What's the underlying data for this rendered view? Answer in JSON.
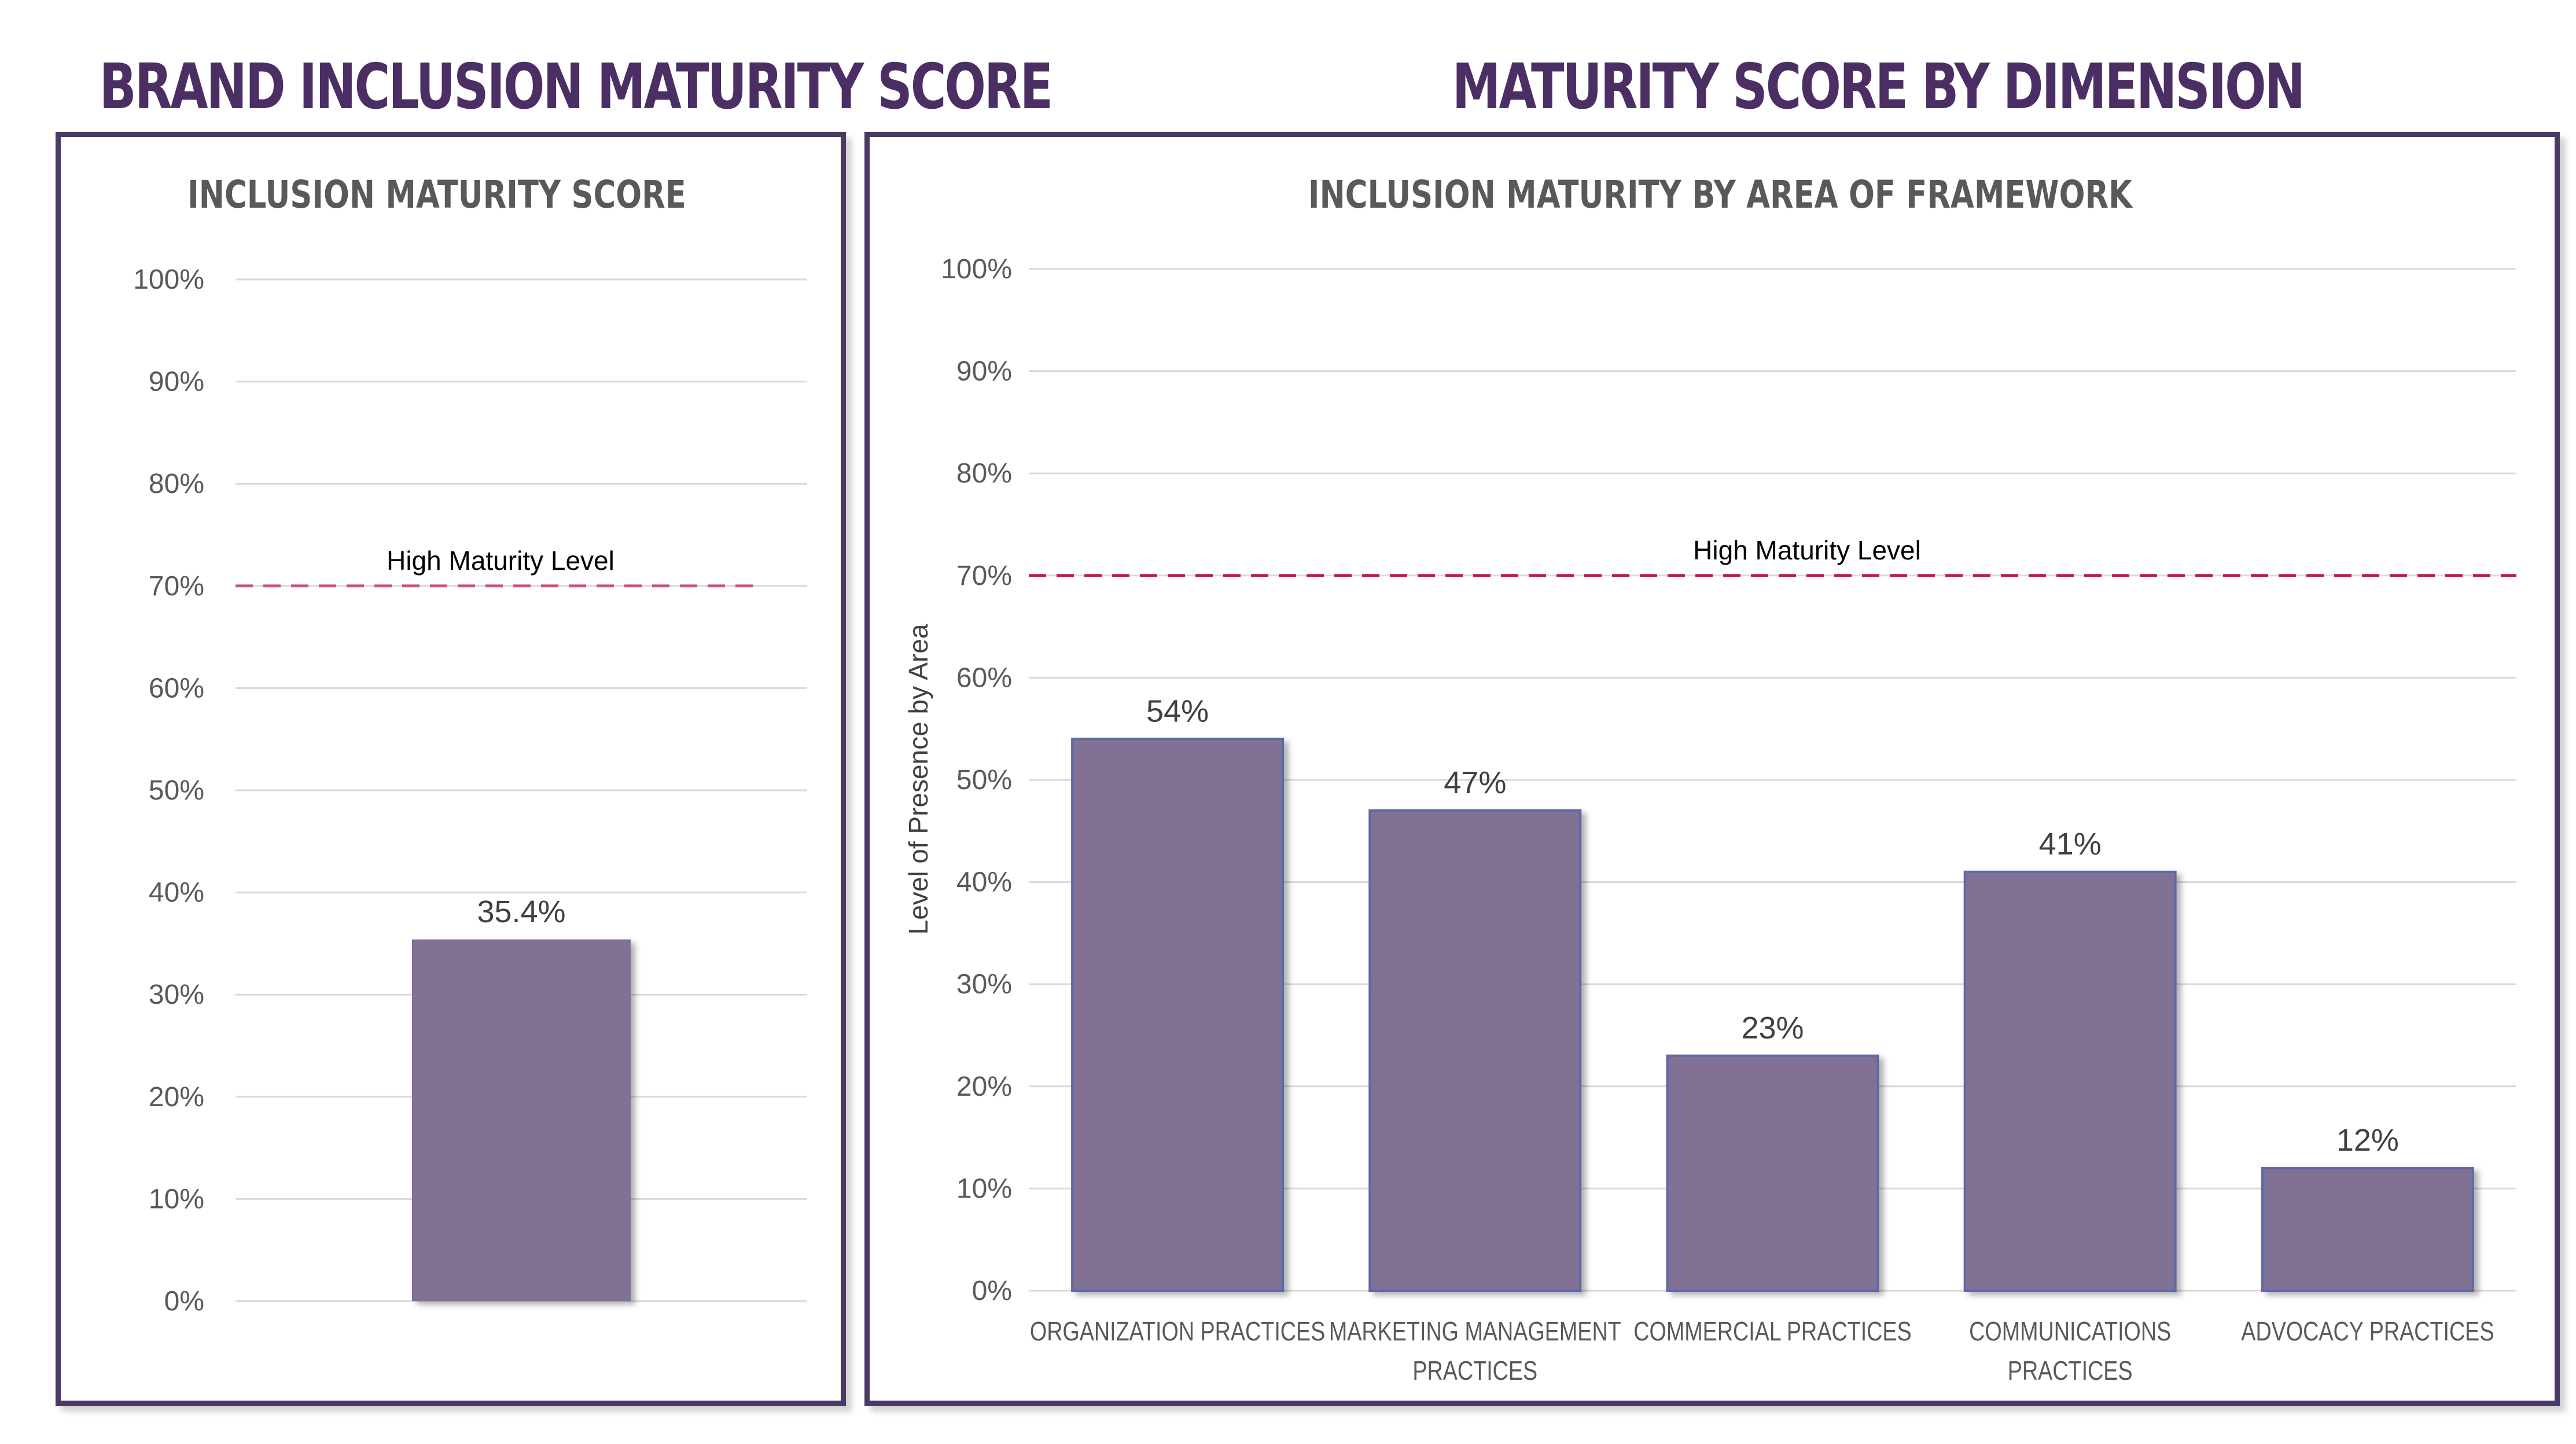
{
  "headings": {
    "left": "BRAND INCLUSION MATURITY SCORE",
    "right": "MATURITY SCORE BY DIMENSION"
  },
  "colors": {
    "heading": "#4b2e63",
    "bar": "#807195",
    "reference_line": "#c2185b",
    "frame": "#4b3a63"
  },
  "chart_data": [
    {
      "type": "bar",
      "title": "INCLUSION MATURITY SCORE",
      "xlabel": "",
      "ylabel": "",
      "categories": [
        ""
      ],
      "values": [
        35.4
      ],
      "data_labels": [
        "35.4%"
      ],
      "ylim": [
        0,
        100
      ],
      "ytick_labels": [
        "0%",
        "10%",
        "20%",
        "30%",
        "40%",
        "50%",
        "60%",
        "70%",
        "80%",
        "90%",
        "100%"
      ],
      "reference_line": {
        "value": 70,
        "label": "High Maturity Level"
      },
      "grid": true,
      "legend": "none"
    },
    {
      "type": "bar",
      "title": "INCLUSION MATURITY BY AREA OF FRAMEWORK",
      "xlabel": "",
      "ylabel": "Level of Presence by Area",
      "categories": [
        "ORGANIZATION PRACTICES",
        "MARKETING MANAGEMENT PRACTICES",
        "COMMERCIAL PRACTICES",
        "COMMUNICATIONS PRACTICES",
        "ADVOCACY PRACTICES"
      ],
      "category_lines": [
        [
          "ORGANIZATION PRACTICES"
        ],
        [
          "MARKETING MANAGEMENT",
          "PRACTICES"
        ],
        [
          "COMMERCIAL PRACTICES"
        ],
        [
          "COMMUNICATIONS",
          "PRACTICES"
        ],
        [
          "ADVOCACY PRACTICES"
        ]
      ],
      "values": [
        54,
        47,
        23,
        41,
        12
      ],
      "data_labels": [
        "54%",
        "47%",
        "23%",
        "41%",
        "12%"
      ],
      "ylim": [
        0,
        100
      ],
      "ytick_labels": [
        "0%",
        "10%",
        "20%",
        "30%",
        "40%",
        "50%",
        "60%",
        "70%",
        "80%",
        "90%",
        "100%"
      ],
      "reference_line": {
        "value": 70,
        "label": "High Maturity Level"
      },
      "grid": true,
      "legend": "none"
    }
  ]
}
